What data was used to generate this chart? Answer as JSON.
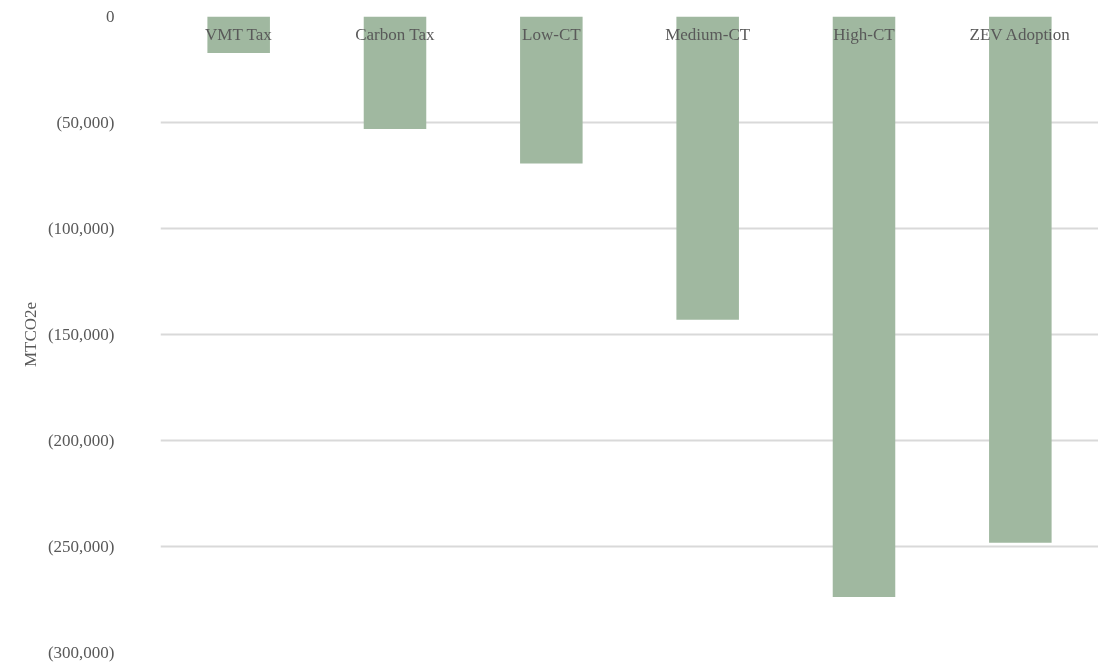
{
  "chart_data": {
    "type": "bar",
    "ylabel": "MTCO2e",
    "categories": [
      "VMT Tax",
      "Carbon Tax",
      "Low-CT",
      "Medium-CT",
      "High-CT",
      "ZEV Adoption"
    ],
    "values": [
      -17200,
      -53100,
      -69300,
      -143000,
      -273800,
      -248200
    ],
    "color": "#a0b8a0",
    "ylim": [
      -300000,
      0
    ],
    "yticks": [
      0,
      {
        "value": -50000,
        "label": "(50,000)"
      },
      {
        "value": -100000,
        "label": "(100,000)"
      },
      {
        "value": -150000,
        "label": "(150,000)"
      },
      {
        "value": -200000,
        "label": "(200,000)"
      },
      {
        "value": -250000,
        "label": "(250,000)"
      },
      {
        "value": -300000,
        "label": "(300,000)"
      }
    ],
    "grid": "y"
  }
}
